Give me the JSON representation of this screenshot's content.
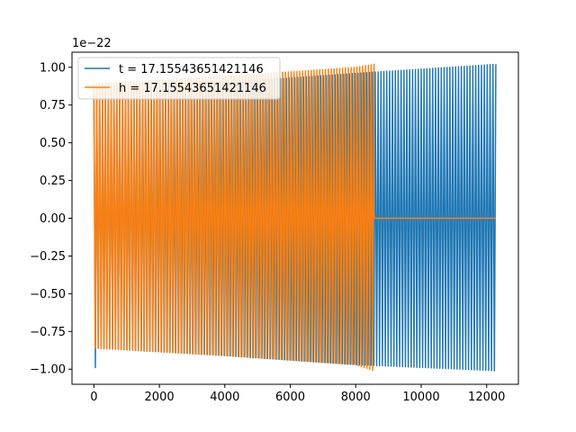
{
  "chart_data": {
    "type": "line",
    "title": "",
    "xlabel": "",
    "ylabel": "",
    "offset_text": "1e−22",
    "xlim": [
      -670,
      12970
    ],
    "ylim": [
      -1.1,
      1.1
    ],
    "grid": false,
    "legend_position": "top-left",
    "xticks": [
      0,
      2000,
      4000,
      6000,
      8000,
      10000,
      12000
    ],
    "xtick_labels": [
      "0",
      "2000",
      "4000",
      "6000",
      "8000",
      "10000",
      "12000"
    ],
    "yticks": [
      -1.0,
      -0.75,
      -0.5,
      -0.25,
      0.0,
      0.25,
      0.5,
      0.75,
      1.0
    ],
    "ytick_labels": [
      "−1.00",
      "−0.75",
      "−0.50",
      "−0.25",
      "0.00",
      "0.25",
      "0.50",
      "0.75",
      "1.00"
    ],
    "series": [
      {
        "name": "t = 17.15543651421146",
        "color": "#1f77b4",
        "description": "oscillating waveform",
        "x_start": 0,
        "x_end": 12280,
        "cycles": 140,
        "envelope_x": [
          0,
          4000,
          8000,
          12280
        ],
        "envelope_upper": [
          0.85,
          0.9,
          0.96,
          1.02
        ],
        "envelope_lower": [
          -0.86,
          -0.91,
          -0.97,
          -1.01
        ],
        "initial_min": -0.99
      },
      {
        "name": "h = 17.15543651421146",
        "color": "#ff7f0e",
        "description": "oscillating waveform then zero",
        "x_start": 0,
        "x_end": 8560,
        "flat_end": 12280,
        "flat_value": 0.0,
        "cycles": 98,
        "envelope_x": [
          0,
          4000,
          8000,
          8560
        ],
        "envelope_upper": [
          0.89,
          0.94,
          1.0,
          1.02
        ],
        "envelope_lower": [
          -0.86,
          -0.91,
          -0.97,
          -1.01
        ]
      }
    ]
  }
}
